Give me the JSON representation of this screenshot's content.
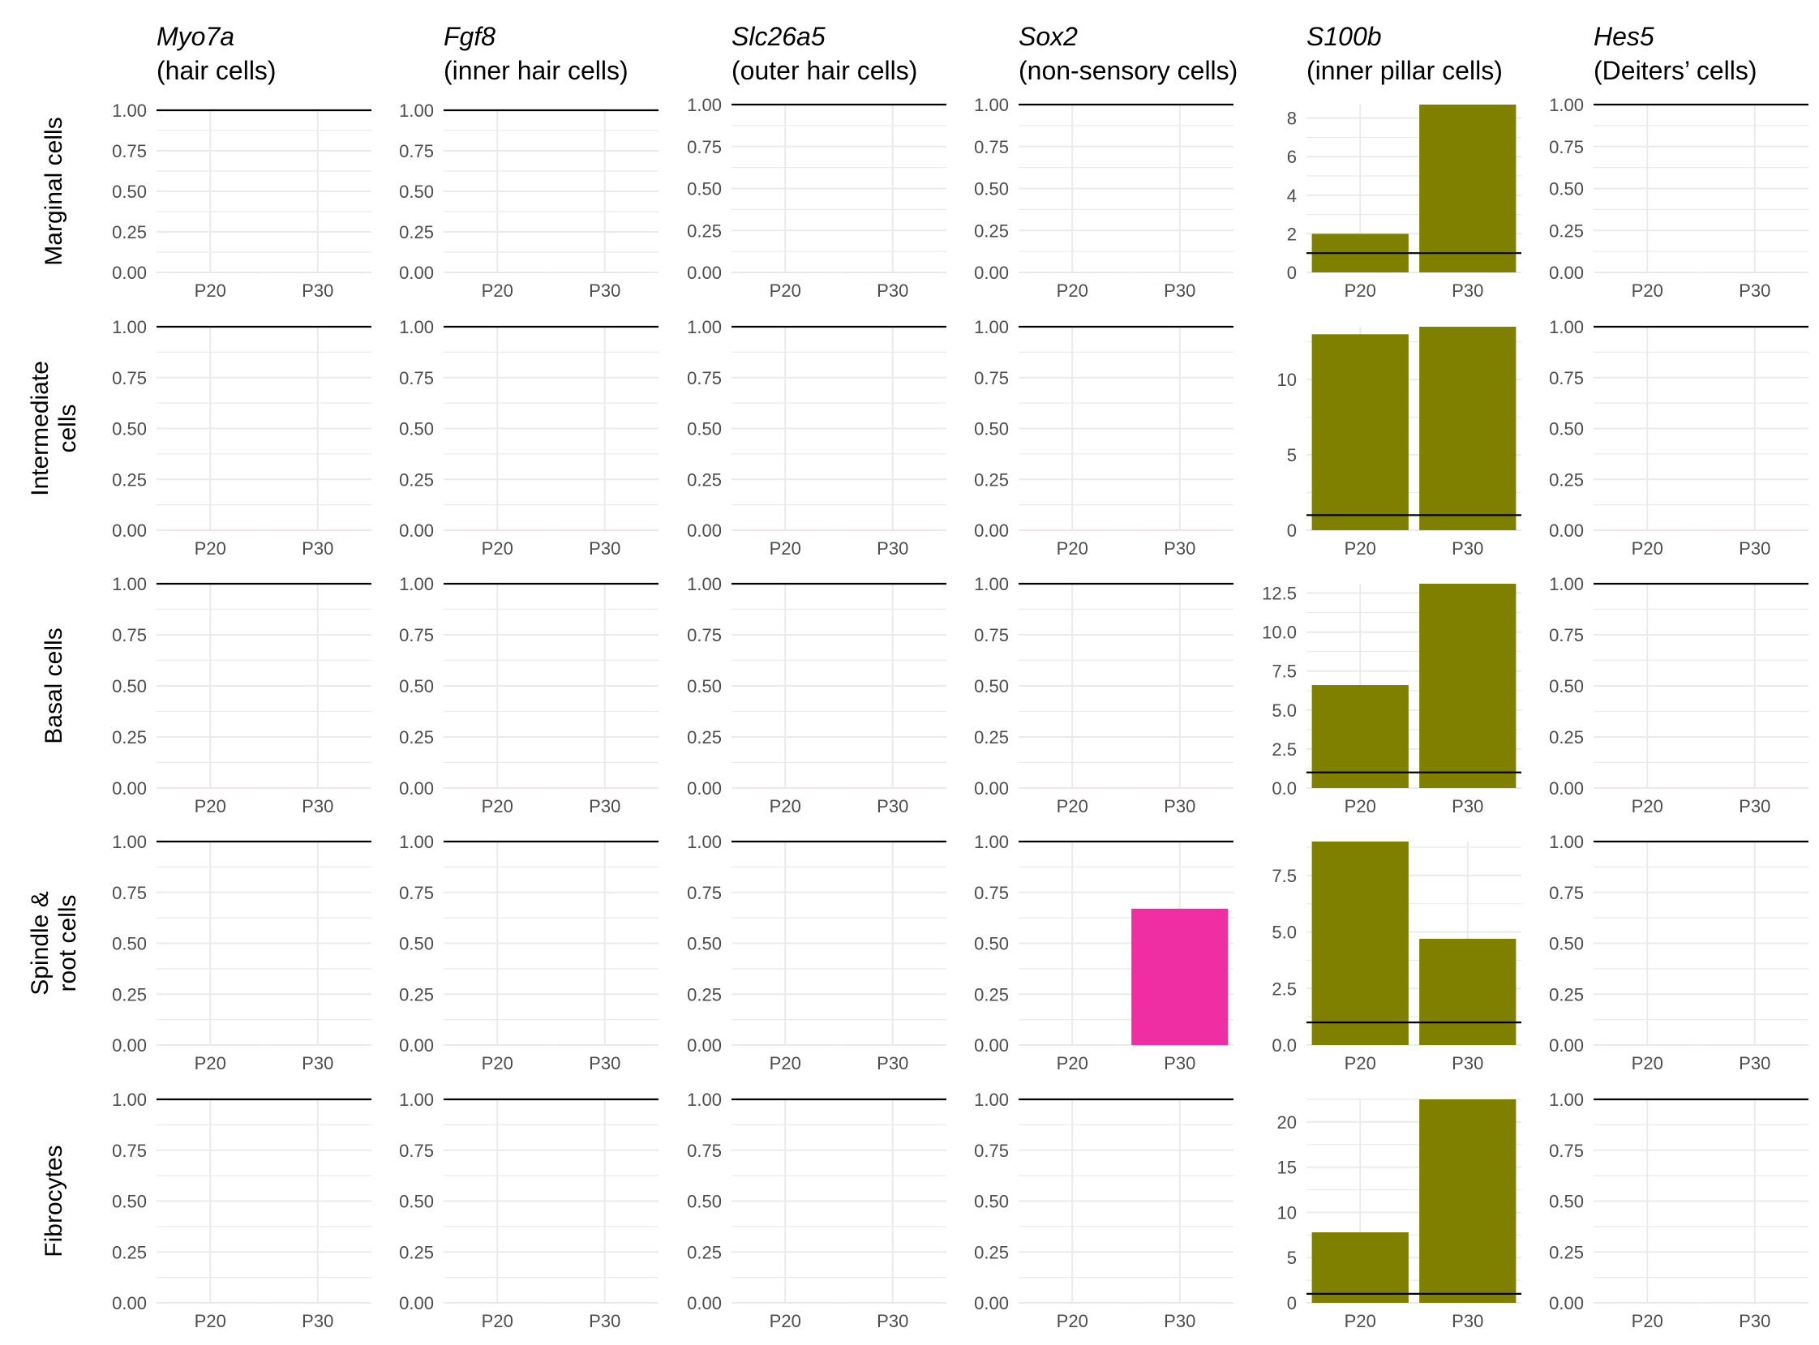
{
  "chart_data": {
    "type": "bar",
    "layout": "facet-grid",
    "columns": [
      {
        "gene": "Myo7a",
        "description": "(hair cells)"
      },
      {
        "gene": "Fgf8",
        "description": "(inner hair cells)"
      },
      {
        "gene": "Slc26a5",
        "description": "(outer hair cells)"
      },
      {
        "gene": "Sox2",
        "description": "(non-sensory cells)"
      },
      {
        "gene": "S100b",
        "description": "(inner pillar cells)"
      },
      {
        "gene": "Hes5",
        "description": "(Deiters’ cells)"
      }
    ],
    "rows": [
      {
        "label": [
          "Marginal cells"
        ]
      },
      {
        "label": [
          "Intermediate",
          "cells"
        ]
      },
      {
        "label": [
          "Basal cells"
        ]
      },
      {
        "label": [
          "Spindle &",
          "root cells"
        ]
      },
      {
        "label": [
          "Fibrocytes"
        ]
      }
    ],
    "categories": [
      "P20",
      "P30"
    ],
    "reference_line": 1,
    "colors": {
      "S100b": "#808000",
      "Sox2": "#ee2ea2",
      "reference": "#000000",
      "grid": "#ebebeb",
      "tick_text": "#4d4d4d"
    },
    "panels": [
      {
        "row": 0,
        "col": 0,
        "values": [
          0,
          0
        ],
        "ylim": [
          0,
          1
        ],
        "yticks": [
          "0.00",
          "0.25",
          "0.50",
          "0.75",
          "1.00"
        ]
      },
      {
        "row": 0,
        "col": 1,
        "values": [
          0,
          0
        ],
        "ylim": [
          0,
          1
        ],
        "yticks": [
          "0.00",
          "0.25",
          "0.50",
          "0.75",
          "1.00"
        ]
      },
      {
        "row": 0,
        "col": 2,
        "values": [
          0,
          0
        ],
        "ylim": [
          0,
          1
        ],
        "yticks": [
          "0.00",
          "0.25",
          "0.50",
          "0.75",
          "1.00"
        ]
      },
      {
        "row": 0,
        "col": 3,
        "values": [
          0,
          0
        ],
        "ylim": [
          0,
          1
        ],
        "yticks": [
          "0.00",
          "0.25",
          "0.50",
          "0.75",
          "1.00"
        ]
      },
      {
        "row": 0,
        "col": 4,
        "values": [
          2.0,
          8.7
        ],
        "ylim": [
          0,
          8.7
        ],
        "yticks": [
          "0",
          "2",
          "4",
          "6",
          "8"
        ]
      },
      {
        "row": 0,
        "col": 5,
        "values": [
          0,
          0
        ],
        "ylim": [
          0,
          1
        ],
        "yticks": [
          "0.00",
          "0.25",
          "0.50",
          "0.75",
          "1.00"
        ]
      },
      {
        "row": 1,
        "col": 0,
        "values": [
          0,
          0
        ],
        "ylim": [
          0,
          1
        ],
        "yticks": [
          "0.00",
          "0.25",
          "0.50",
          "0.75",
          "1.00"
        ]
      },
      {
        "row": 1,
        "col": 1,
        "values": [
          0,
          0
        ],
        "ylim": [
          0,
          1
        ],
        "yticks": [
          "0.00",
          "0.25",
          "0.50",
          "0.75",
          "1.00"
        ]
      },
      {
        "row": 1,
        "col": 2,
        "values": [
          0,
          0
        ],
        "ylim": [
          0,
          1
        ],
        "yticks": [
          "0.00",
          "0.25",
          "0.50",
          "0.75",
          "1.00"
        ]
      },
      {
        "row": 1,
        "col": 3,
        "values": [
          0,
          0
        ],
        "ylim": [
          0,
          1
        ],
        "yticks": [
          "0.00",
          "0.25",
          "0.50",
          "0.75",
          "1.00"
        ]
      },
      {
        "row": 1,
        "col": 4,
        "values": [
          13.0,
          13.5
        ],
        "ylim": [
          0,
          13.5
        ],
        "yticks": [
          "0",
          "5",
          "10"
        ]
      },
      {
        "row": 1,
        "col": 5,
        "values": [
          0,
          0
        ],
        "ylim": [
          0,
          1
        ],
        "yticks": [
          "0.00",
          "0.25",
          "0.50",
          "0.75",
          "1.00"
        ]
      },
      {
        "row": 2,
        "col": 0,
        "values": [
          0,
          0
        ],
        "ylim": [
          0,
          1
        ],
        "yticks": [
          "0.00",
          "0.25",
          "0.50",
          "0.75",
          "1.00"
        ]
      },
      {
        "row": 2,
        "col": 1,
        "values": [
          0,
          0
        ],
        "ylim": [
          0,
          1
        ],
        "yticks": [
          "0.00",
          "0.25",
          "0.50",
          "0.75",
          "1.00"
        ]
      },
      {
        "row": 2,
        "col": 2,
        "values": [
          0,
          0
        ],
        "ylim": [
          0,
          1
        ],
        "yticks": [
          "0.00",
          "0.25",
          "0.50",
          "0.75",
          "1.00"
        ]
      },
      {
        "row": 2,
        "col": 3,
        "values": [
          0,
          0
        ],
        "ylim": [
          0,
          1
        ],
        "yticks": [
          "0.00",
          "0.25",
          "0.50",
          "0.75",
          "1.00"
        ]
      },
      {
        "row": 2,
        "col": 4,
        "values": [
          6.6,
          13.1
        ],
        "ylim": [
          0,
          13.1
        ],
        "yticks": [
          "0.0",
          "2.5",
          "5.0",
          "7.5",
          "10.0",
          "12.5"
        ]
      },
      {
        "row": 2,
        "col": 5,
        "values": [
          0,
          0
        ],
        "ylim": [
          0,
          1
        ],
        "yticks": [
          "0.00",
          "0.25",
          "0.50",
          "0.75",
          "1.00"
        ]
      },
      {
        "row": 3,
        "col": 0,
        "values": [
          0,
          0
        ],
        "ylim": [
          0,
          1
        ],
        "yticks": [
          "0.00",
          "0.25",
          "0.50",
          "0.75",
          "1.00"
        ]
      },
      {
        "row": 3,
        "col": 1,
        "values": [
          0,
          0
        ],
        "ylim": [
          0,
          1
        ],
        "yticks": [
          "0.00",
          "0.25",
          "0.50",
          "0.75",
          "1.00"
        ]
      },
      {
        "row": 3,
        "col": 2,
        "values": [
          0,
          0
        ],
        "ylim": [
          0,
          1
        ],
        "yticks": [
          "0.00",
          "0.25",
          "0.50",
          "0.75",
          "1.00"
        ]
      },
      {
        "row": 3,
        "col": 3,
        "values": [
          0,
          0.67
        ],
        "ylim": [
          0,
          1
        ],
        "yticks": [
          "0.00",
          "0.25",
          "0.50",
          "0.75",
          "1.00"
        ]
      },
      {
        "row": 3,
        "col": 4,
        "values": [
          9.0,
          4.7
        ],
        "ylim": [
          0,
          9.0
        ],
        "yticks": [
          "0.0",
          "2.5",
          "5.0",
          "7.5"
        ]
      },
      {
        "row": 3,
        "col": 5,
        "values": [
          0,
          0
        ],
        "ylim": [
          0,
          1
        ],
        "yticks": [
          "0.00",
          "0.25",
          "0.50",
          "0.75",
          "1.00"
        ]
      },
      {
        "row": 4,
        "col": 0,
        "values": [
          0,
          0
        ],
        "ylim": [
          0,
          1
        ],
        "yticks": [
          "0.00",
          "0.25",
          "0.50",
          "0.75",
          "1.00"
        ]
      },
      {
        "row": 4,
        "col": 1,
        "values": [
          0,
          0
        ],
        "ylim": [
          0,
          1
        ],
        "yticks": [
          "0.00",
          "0.25",
          "0.50",
          "0.75",
          "1.00"
        ]
      },
      {
        "row": 4,
        "col": 2,
        "values": [
          0,
          0
        ],
        "ylim": [
          0,
          1
        ],
        "yticks": [
          "0.00",
          "0.25",
          "0.50",
          "0.75",
          "1.00"
        ]
      },
      {
        "row": 4,
        "col": 3,
        "values": [
          0,
          0
        ],
        "ylim": [
          0,
          1
        ],
        "yticks": [
          "0.00",
          "0.25",
          "0.50",
          "0.75",
          "1.00"
        ]
      },
      {
        "row": 4,
        "col": 4,
        "values": [
          7.8,
          22.5
        ],
        "ylim": [
          0,
          22.5
        ],
        "yticks": [
          "0",
          "5",
          "10",
          "15",
          "20"
        ]
      },
      {
        "row": 4,
        "col": 5,
        "values": [
          0,
          0
        ],
        "ylim": [
          0,
          1
        ],
        "yticks": [
          "0.00",
          "0.25",
          "0.50",
          "0.75",
          "1.00"
        ]
      }
    ]
  }
}
